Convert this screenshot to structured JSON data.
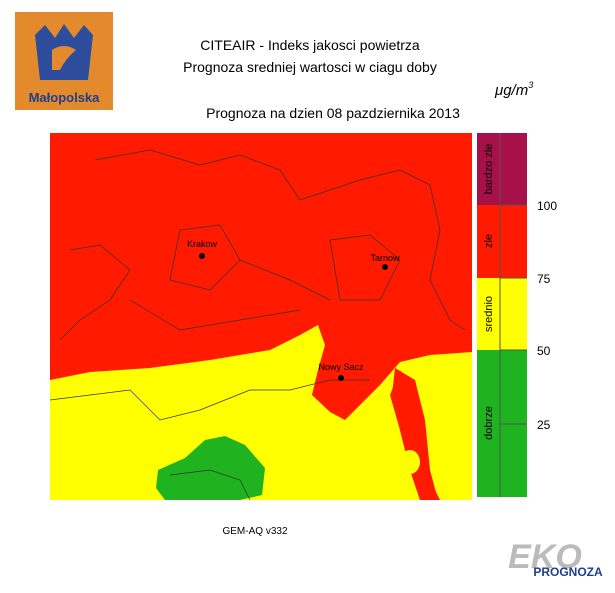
{
  "logo": {
    "label": "Małopolska"
  },
  "header": {
    "title": "CITEAIR - Indeks jakosci powietrza",
    "subtitle": "Prognoza sredniej wartosci w ciagu doby",
    "date": "Prognoza na dzien  08 pazdziernika 2013",
    "unit_base": "μg/m",
    "unit_exp": "3"
  },
  "map": {
    "cities": [
      "Krakow",
      "Tarnow",
      "Nowy Sacz"
    ]
  },
  "legend": {
    "classes": [
      "bardzo zle",
      "zle",
      "srednio",
      "dobrze"
    ],
    "thresholds": [
      100,
      75,
      50,
      25
    ]
  },
  "footer": {
    "model": "GEM-AQ v332",
    "brand_top": "EKO",
    "brand_bottom": "PROGNOZA"
  }
}
